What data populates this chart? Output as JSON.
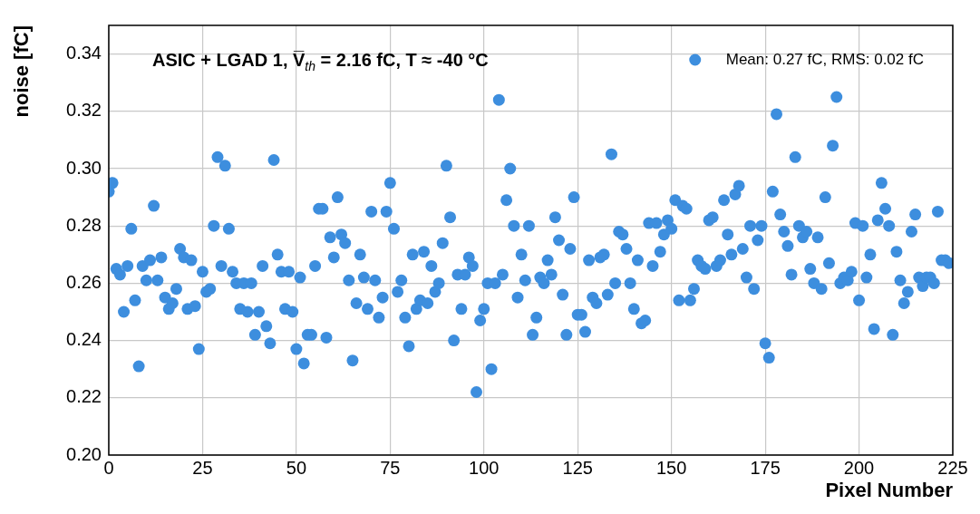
{
  "chart_data": {
    "type": "scatter",
    "title": "ASIC + LGAD 1, V̅$_{th}$ = 2.16 fC, T ≈ -40 °C",
    "xlabel": "Pixel Number",
    "ylabel": "noise [fC]",
    "x": [
      0,
      1,
      2,
      3,
      4,
      5,
      6,
      7,
      8,
      9,
      10,
      11,
      12,
      13,
      14,
      15,
      16,
      17,
      18,
      19,
      20,
      21,
      22,
      23,
      24,
      25,
      26,
      27,
      28,
      29,
      30,
      31,
      32,
      33,
      34,
      35,
      36,
      37,
      38,
      39,
      40,
      41,
      42,
      43,
      44,
      45,
      46,
      47,
      48,
      49,
      50,
      51,
      52,
      53,
      54,
      55,
      56,
      57,
      58,
      59,
      60,
      61,
      62,
      63,
      64,
      65,
      66,
      67,
      68,
      69,
      70,
      71,
      72,
      73,
      74,
      75,
      76,
      77,
      78,
      79,
      80,
      81,
      82,
      83,
      84,
      85,
      86,
      87,
      88,
      89,
      90,
      91,
      92,
      93,
      94,
      95,
      96,
      97,
      98,
      99,
      100,
      101,
      102,
      103,
      104,
      105,
      106,
      107,
      108,
      109,
      110,
      111,
      112,
      113,
      114,
      115,
      116,
      117,
      118,
      119,
      120,
      121,
      122,
      123,
      124,
      125,
      126,
      127,
      128,
      129,
      130,
      131,
      132,
      133,
      134,
      135,
      136,
      137,
      138,
      139,
      140,
      141,
      142,
      143,
      144,
      145,
      146,
      147,
      148,
      149,
      150,
      151,
      152,
      153,
      154,
      155,
      156,
      157,
      158,
      159,
      160,
      161,
      162,
      163,
      164,
      165,
      166,
      167,
      168,
      169,
      170,
      171,
      172,
      173,
      174,
      175,
      176,
      177,
      178,
      179,
      180,
      181,
      182,
      183,
      184,
      185,
      186,
      187,
      188,
      189,
      190,
      191,
      192,
      193,
      194,
      195,
      196,
      197,
      198,
      199,
      200,
      201,
      202,
      203,
      204,
      205,
      206,
      207,
      208,
      209,
      210,
      211,
      212,
      213,
      214,
      215,
      216,
      217,
      218,
      219,
      220,
      221,
      222,
      223,
      224
    ],
    "series": [
      {
        "name": "Mean: 0.27 fC, RMS: 0.02 fC",
        "color": "#3d8ede",
        "values": [
          0.292,
          0.295,
          0.265,
          0.263,
          0.25,
          0.266,
          0.279,
          0.254,
          0.231,
          0.266,
          0.261,
          0.268,
          0.287,
          0.261,
          0.269,
          0.255,
          0.251,
          0.253,
          0.258,
          0.272,
          0.269,
          0.251,
          0.268,
          0.252,
          0.237,
          0.264,
          0.257,
          0.258,
          0.28,
          0.304,
          0.266,
          0.301,
          0.279,
          0.264,
          0.26,
          0.251,
          0.26,
          0.25,
          0.26,
          0.242,
          0.25,
          0.266,
          0.245,
          0.239,
          0.303,
          0.27,
          0.264,
          0.251,
          0.264,
          0.25,
          0.237,
          0.262,
          0.232,
          0.242,
          0.242,
          0.266,
          0.286,
          0.286,
          0.241,
          0.276,
          0.269,
          0.29,
          0.277,
          0.274,
          0.261,
          0.233,
          0.253,
          0.27,
          0.262,
          0.251,
          0.285,
          0.261,
          0.248,
          0.255,
          0.285,
          0.295,
          0.279,
          0.257,
          0.261,
          0.248,
          0.238,
          0.27,
          0.251,
          0.254,
          0.271,
          0.253,
          0.266,
          0.257,
          0.26,
          0.274,
          0.301,
          0.283,
          0.24,
          0.263,
          0.251,
          0.263,
          0.269,
          0.266,
          0.222,
          0.247,
          0.251,
          0.26,
          0.23,
          0.26,
          0.324,
          0.263,
          0.289,
          0.3,
          0.28,
          0.255,
          0.27,
          0.261,
          0.28,
          0.242,
          0.248,
          0.262,
          0.26,
          0.268,
          0.263,
          0.283,
          0.275,
          0.256,
          0.242,
          0.272,
          0.29,
          0.249,
          0.249,
          0.243,
          0.268,
          0.255,
          0.253,
          0.269,
          0.27,
          0.256,
          0.305,
          0.26,
          0.278,
          0.277,
          0.272,
          0.26,
          0.251,
          0.268,
          0.246,
          0.247,
          0.281,
          0.266,
          0.281,
          0.271,
          0.277,
          0.282,
          0.279,
          0.289,
          0.254,
          0.287,
          0.286,
          0.254,
          0.258,
          0.268,
          0.266,
          0.265,
          0.282,
          0.283,
          0.266,
          0.268,
          0.289,
          0.277,
          0.27,
          0.291,
          0.294,
          0.272,
          0.262,
          0.28,
          0.258,
          0.275,
          0.28,
          0.239,
          0.234,
          0.292,
          0.319,
          0.284,
          0.278,
          0.273,
          0.263,
          0.304,
          0.28,
          0.276,
          0.278,
          0.265,
          0.26,
          0.276,
          0.258,
          0.29,
          0.267,
          0.308,
          0.325,
          0.26,
          0.262,
          0.261,
          0.264,
          0.281,
          0.254,
          0.28,
          0.262,
          0.27,
          0.244,
          0.282,
          0.295,
          0.286,
          0.28,
          0.242,
          0.271,
          0.261,
          0.253,
          0.257,
          0.278,
          0.284,
          0.262,
          0.259,
          0.262,
          0.262,
          0.26,
          0.285,
          0.268,
          0.268,
          0.267
        ]
      }
    ],
    "xlim": [
      0,
      225
    ],
    "xticks": [
      0,
      25,
      50,
      75,
      100,
      125,
      150,
      175,
      200,
      225
    ],
    "ylim": [
      0.2,
      0.35
    ],
    "yticks": [
      {
        "value": 0.2,
        "label": "0.20"
      },
      {
        "value": 0.22,
        "label": "0.22"
      },
      {
        "value": 0.24,
        "label": "0.24"
      },
      {
        "value": 0.26,
        "label": "0.26"
      },
      {
        "value": 0.28,
        "label": "0.28"
      },
      {
        "value": 0.3,
        "label": "0.30"
      },
      {
        "value": 0.32,
        "label": "0.32"
      },
      {
        "value": 0.34,
        "label": "0.34"
      }
    ],
    "grid": true,
    "legend": "top right",
    "marker": "circle"
  }
}
